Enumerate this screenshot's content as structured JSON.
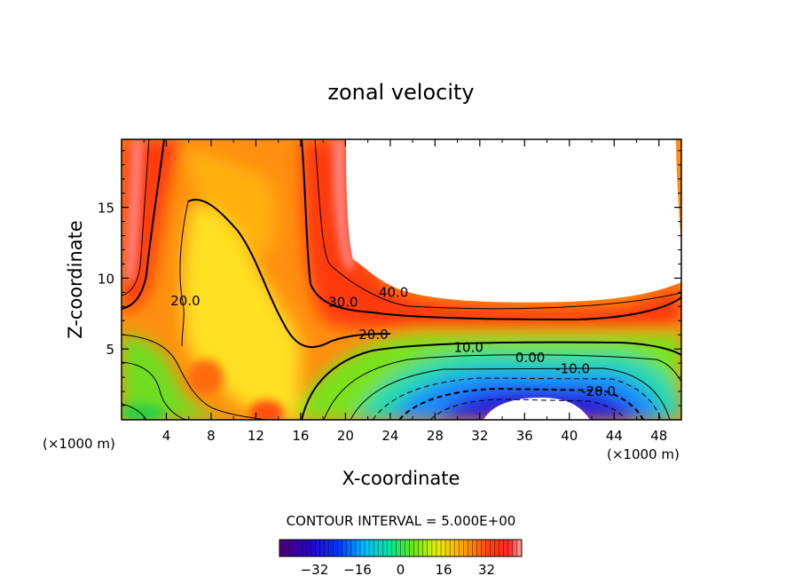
{
  "chart_data": {
    "type": "heatmap",
    "title": "zonal velocity",
    "xlabel": "X-coordinate",
    "ylabel": "Z-coordinate",
    "x_units_left": "(×1000 m)",
    "x_units_right": "(×1000 m)",
    "xlim": [
      0,
      50
    ],
    "ylim": [
      0,
      19.8
    ],
    "x_ticks": [
      4,
      8,
      12,
      16,
      20,
      24,
      28,
      32,
      36,
      40,
      44,
      48
    ],
    "x_tick_labels": [
      "4",
      "8",
      "12",
      "16",
      "20",
      "24",
      "28",
      "32",
      "36",
      "40",
      "44",
      "48"
    ],
    "y_ticks": [
      5,
      10,
      15
    ],
    "y_tick_labels": [
      "5",
      "10",
      "15"
    ],
    "contour_labels": [
      {
        "text": "40.0",
        "x": 24.3,
        "z": 9.0
      },
      {
        "text": "30.0",
        "x": 19.8,
        "z": 8.3
      },
      {
        "text": "20.0",
        "x": 5.7,
        "z": 8.4
      },
      {
        "text": "20.0",
        "x": 22.5,
        "z": 6.0
      },
      {
        "text": "10.0",
        "x": 31.0,
        "z": 5.1
      },
      {
        "text": "0.00",
        "x": 36.5,
        "z": 4.4
      },
      {
        "text": "-10.0",
        "x": 40.3,
        "z": 3.6
      },
      {
        "text": "-20.0",
        "x": 42.6,
        "z": 2.0
      }
    ],
    "contour_interval_text": "CONTOUR INTERVAL = 5.000E+00",
    "colorbar": {
      "min": -45,
      "max": 45,
      "tick_values": [
        -32,
        -16,
        0,
        16,
        32
      ],
      "tick_labels": [
        "−32",
        "−16",
        "0",
        "16",
        "32"
      ]
    },
    "field_regions": [
      {
        "region": "upper-right cavity (x 20-50, z 8-20)",
        "value_range": "above 45 / masked white"
      },
      {
        "region": "left jet core (x 0-3, z 8-20)",
        "value_range": "40 to 45+"
      },
      {
        "region": "central column (x 3-19, z 0-20)",
        "value_range": "15 to 35"
      },
      {
        "region": "lower-left corner (x 0-6, z 0-4)",
        "value_range": "0 to 10"
      },
      {
        "region": "bottom center (x 28-47, z 0-3)",
        "value_range": "-40 to -10"
      },
      {
        "region": "layer z 6-8 (x 20-50)",
        "value_range": "20 to 45"
      }
    ]
  }
}
